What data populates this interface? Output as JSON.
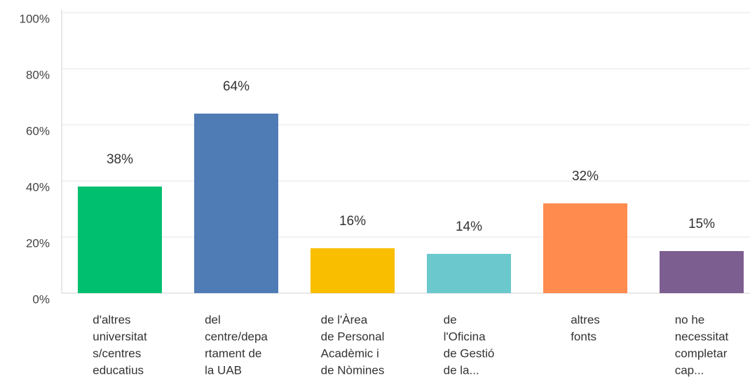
{
  "chart_data": {
    "type": "bar",
    "categories": [
      [
        "d'altres",
        "universitat",
        "s/centres",
        "educatius"
      ],
      [
        "del",
        "centre/depa",
        "rtament de",
        "la UAB"
      ],
      [
        "de l'Àrea",
        "de Personal",
        "Acadèmic i",
        "de Nòmines"
      ],
      [
        "de",
        "l'Oficina",
        "de Gestió",
        "de la..."
      ],
      [
        "altres",
        "fonts"
      ],
      [
        "no he",
        "necessitat",
        "completar",
        "cap..."
      ]
    ],
    "values": [
      38,
      64,
      16,
      14,
      32,
      15
    ],
    "value_labels": [
      "38%",
      "64%",
      "16%",
      "14%",
      "32%",
      "15%"
    ],
    "colors": [
      "#00bf6f",
      "#507cb6",
      "#f9be00",
      "#6bc8cd",
      "#ff8b4f",
      "#7d5e90"
    ],
    "ylim": [
      0,
      100
    ],
    "yticks": [
      {
        "value": 0,
        "label": "0%"
      },
      {
        "value": 20,
        "label": "20%"
      },
      {
        "value": 40,
        "label": "40%"
      },
      {
        "value": 60,
        "label": "60%"
      },
      {
        "value": 80,
        "label": "80%"
      },
      {
        "value": 100,
        "label": "100%"
      }
    ],
    "grid": true
  }
}
